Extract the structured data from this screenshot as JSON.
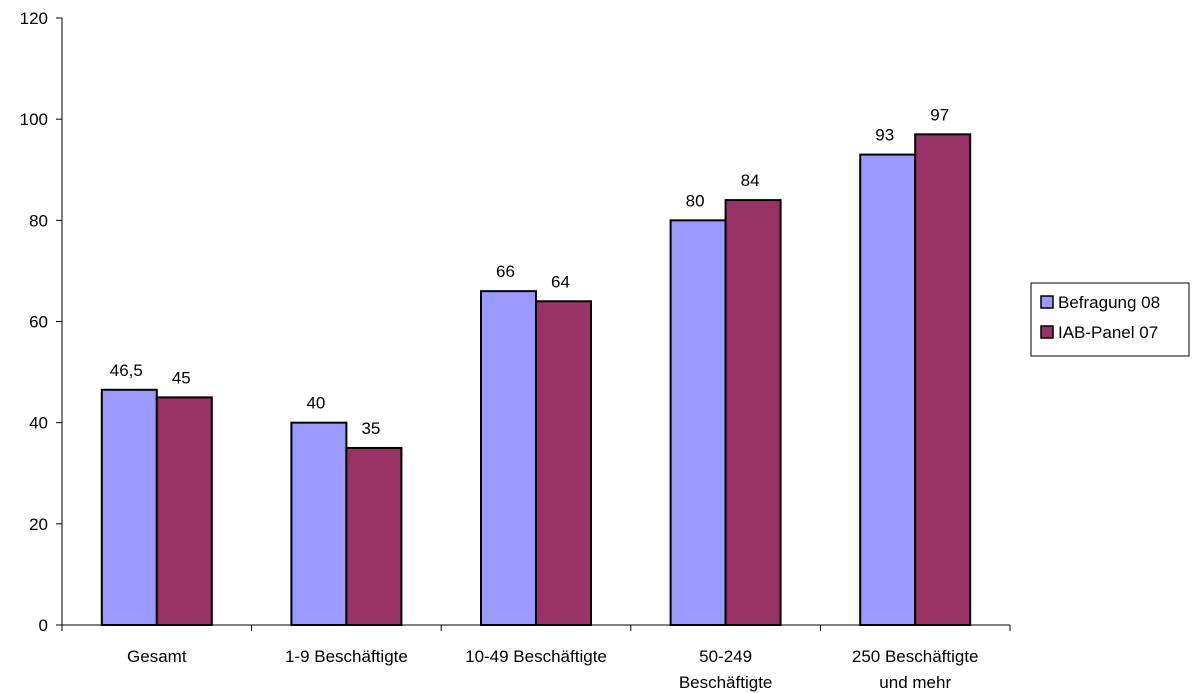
{
  "chart_data": {
    "type": "bar",
    "categories": [
      [
        "Gesamt"
      ],
      [
        "1-9 Beschäftigte"
      ],
      [
        "10-49 Beschäftigte"
      ],
      [
        "50-249",
        "Beschäftigte"
      ],
      [
        "250 Beschäftigte",
        "und mehr"
      ]
    ],
    "series": [
      {
        "name": "Befragung 08",
        "values": [
          46.5,
          40,
          66,
          80,
          93
        ],
        "labels": [
          "46,5",
          "40",
          "66",
          "80",
          "93"
        ],
        "color": "#9999ff"
      },
      {
        "name": "IAB-Panel 07",
        "values": [
          45,
          35,
          64,
          84,
          97
        ],
        "labels": [
          "45",
          "35",
          "64",
          "84",
          "97"
        ],
        "color": "#993366"
      }
    ],
    "ylim": [
      0,
      120
    ],
    "yticks": [
      0,
      20,
      40,
      60,
      80,
      100,
      120
    ],
    "grid": false,
    "legend_position": "right",
    "title": "",
    "xlabel": "",
    "ylabel": ""
  }
}
